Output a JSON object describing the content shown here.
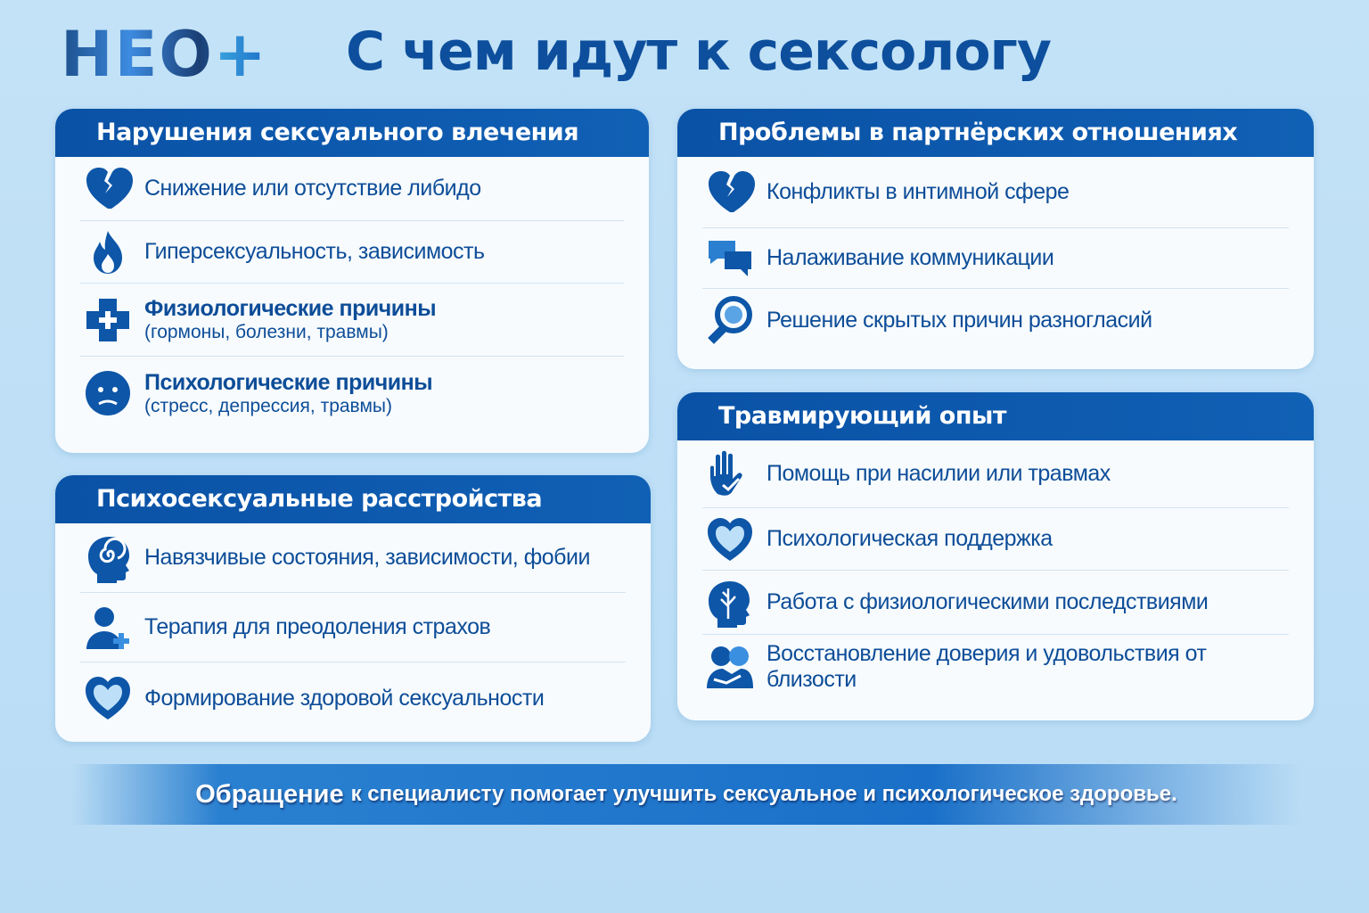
{
  "logo": {
    "text": "НЕО",
    "plus": "+"
  },
  "title": "С чем идут к сексологу",
  "cards": [
    {
      "header": "Нарушения сексуального влечения",
      "items": [
        {
          "icon": "broken-heart-icon",
          "text": "Снижение или отсутствие либидо"
        },
        {
          "icon": "flame-icon",
          "text": "Гиперсексуальность, зависимость"
        },
        {
          "icon": "medical-cross-icon",
          "text": "Физиологические причины",
          "sub": "(гормоны, болезни, травмы)"
        },
        {
          "icon": "sad-face-icon",
          "text": "Психологические причины",
          "sub": "(стресс, депрессия, травмы)"
        }
      ]
    },
    {
      "header": "Психосексуальные расстройства",
      "items": [
        {
          "icon": "spiral-head-icon",
          "text": "Навязчивые состояния, зависимости, фобии"
        },
        {
          "icon": "person-plus-icon",
          "text": "Терапия для преодоления страхов"
        },
        {
          "icon": "heart-icon",
          "text": "Формирование здоровой сексуальности"
        }
      ]
    },
    {
      "header": "Проблемы в партнёрских отношениях",
      "items": [
        {
          "icon": "broken-heart-icon",
          "text": "Конфликты в интимной сфере"
        },
        {
          "icon": "chat-bubbles-icon",
          "text": "Налаживание коммуникации"
        },
        {
          "icon": "magnifier-icon",
          "text": "Решение скрытых причин разногласий"
        }
      ]
    },
    {
      "header": "Травмирующий опыт",
      "items": [
        {
          "icon": "hand-icon",
          "text": "Помощь при насилии или травмах"
        },
        {
          "icon": "heart-icon",
          "text": "Психологическая поддержка"
        },
        {
          "icon": "tree-head-icon",
          "text": "Работа с физиологическими последствиями"
        },
        {
          "icon": "hug-icon",
          "text": "Восстановление доверия и удовольствия от близости"
        }
      ]
    }
  ],
  "banner": {
    "lead": "Обращение",
    "rest": "к специалисту помогает улучшить сексуальное и психологическое здоровье."
  },
  "colors": {
    "primary": "#0a52a6",
    "text": "#0d4d98",
    "background": "#c3e2f7"
  }
}
